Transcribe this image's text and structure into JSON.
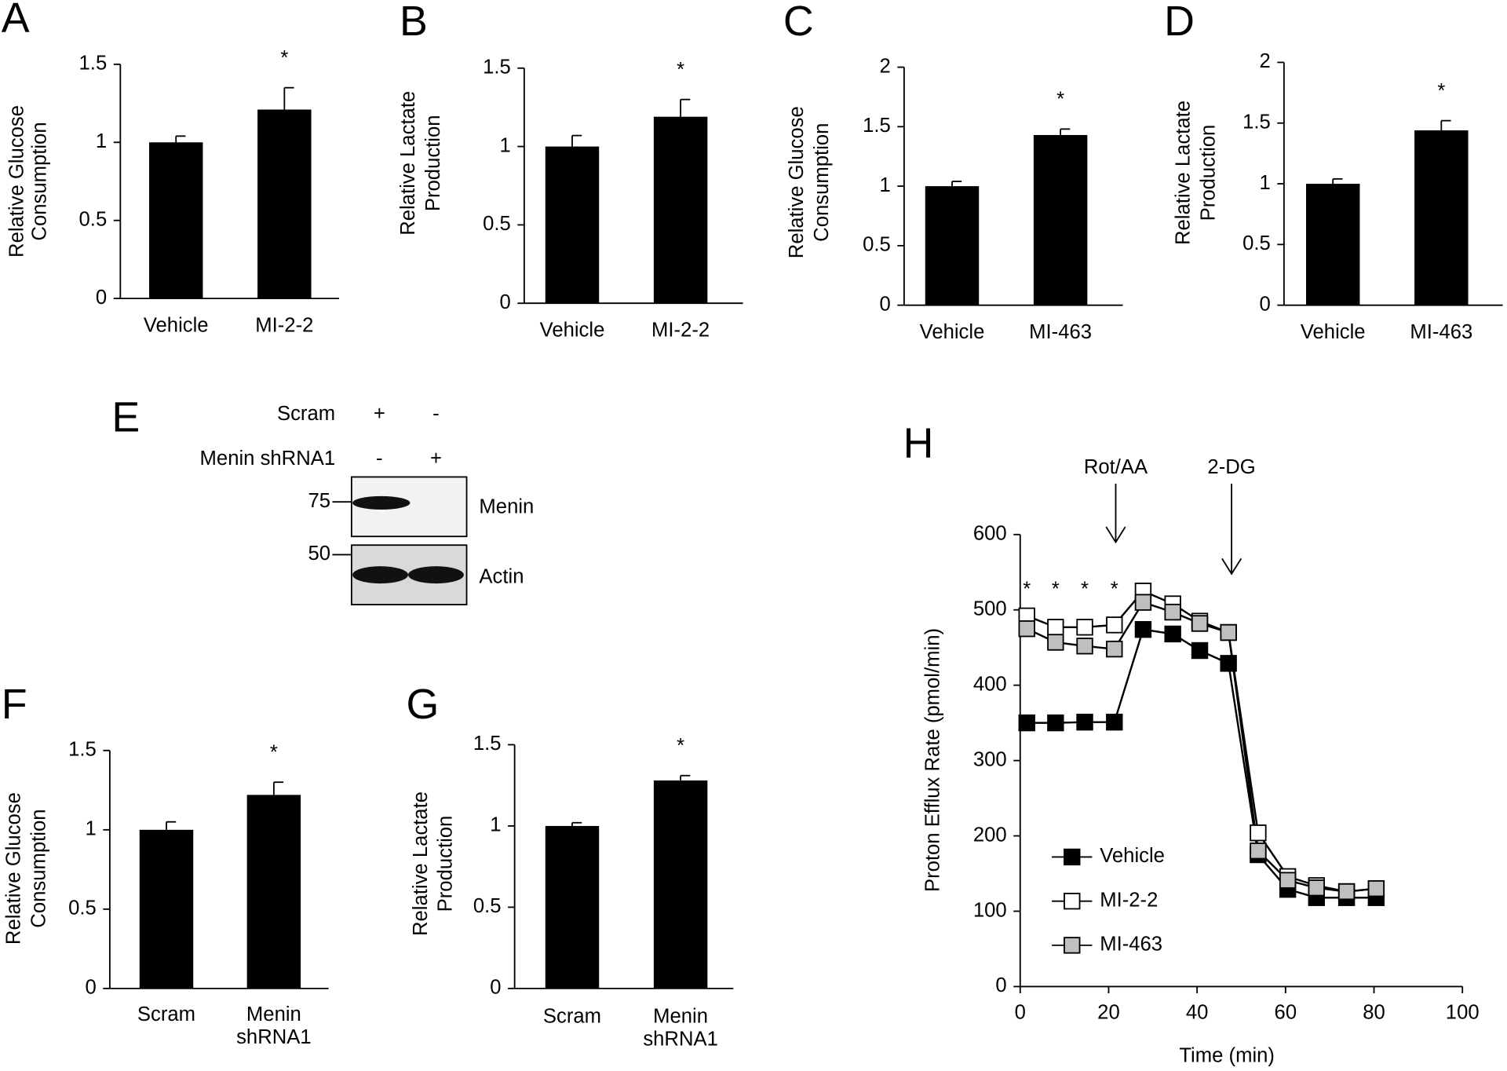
{
  "chart_data": [
    {
      "type": "bar",
      "panel": "A",
      "ylabel": [
        "Relative Glucose",
        "Consumption"
      ],
      "categories": [
        "Vehicle",
        "MI-2-2"
      ],
      "values": [
        1.0,
        1.21
      ],
      "errors": [
        0.04,
        0.14
      ],
      "annotation": "*",
      "color": "#000000",
      "ylim": [
        0,
        1.5
      ],
      "yticks": [
        0,
        0.5,
        1,
        1.5
      ]
    },
    {
      "type": "bar",
      "panel": "B",
      "ylabel": [
        "Relative Lactate",
        "Production"
      ],
      "categories": [
        "Vehicle",
        "MI-2-2"
      ],
      "values": [
        1.0,
        1.19
      ],
      "errors": [
        0.07,
        0.11
      ],
      "annotation": "*",
      "color": "#000000",
      "ylim": [
        0,
        1.5
      ],
      "yticks": [
        0,
        0.5,
        1,
        1.5
      ]
    },
    {
      "type": "bar",
      "panel": "C",
      "ylabel": [
        "Relative Glucose",
        "Consumption"
      ],
      "categories": [
        "Vehicle",
        "MI-463"
      ],
      "values": [
        1.0,
        1.43
      ],
      "errors": [
        0.04,
        0.05
      ],
      "annotation": "*",
      "color": "#000000",
      "ylim": [
        0,
        2
      ],
      "yticks": [
        0,
        0.5,
        1,
        1.5,
        2
      ]
    },
    {
      "type": "bar",
      "panel": "D",
      "ylabel": [
        "Relative Lactate",
        "Production"
      ],
      "categories": [
        "Vehicle",
        "MI-463"
      ],
      "values": [
        1.0,
        1.44
      ],
      "errors": [
        0.04,
        0.08
      ],
      "annotation": "*",
      "color": "#000000",
      "ylim": [
        0,
        2
      ],
      "yticks": [
        0,
        0.5,
        1,
        1.5,
        2
      ]
    },
    {
      "type": "bar",
      "panel": "F",
      "ylabel": [
        "Relative Glucose",
        "Consumption"
      ],
      "categories": [
        [
          "Scram"
        ],
        [
          "Menin",
          "shRNA1"
        ]
      ],
      "values": [
        1.0,
        1.22
      ],
      "errors": [
        0.05,
        0.08
      ],
      "annotation": "*",
      "color": "#000000",
      "ylim": [
        0,
        1.5
      ],
      "yticks": [
        0,
        0.5,
        1,
        1.5
      ]
    },
    {
      "type": "bar",
      "panel": "G",
      "ylabel": [
        "Relative Lactate",
        "Production"
      ],
      "categories": [
        [
          "Scram"
        ],
        [
          "Menin",
          "shRNA1"
        ]
      ],
      "values": [
        1.0,
        1.28
      ],
      "errors": [
        0.02,
        0.03
      ],
      "annotation": "*",
      "color": "#000000",
      "ylim": [
        0,
        1.5
      ],
      "yticks": [
        0,
        0.5,
        1,
        1.5
      ]
    },
    {
      "type": "line",
      "panel": "H",
      "xlabel": "Time (min)",
      "ylabel": "Proton Efflux Rate (pmol/min)",
      "x": [
        1.5,
        8,
        14.6,
        21.3,
        27.8,
        34.5,
        40.6,
        47.1,
        53.8,
        60.5,
        67,
        73.8,
        80.5
      ],
      "series": [
        {
          "name": "Vehicle",
          "color": "#000000",
          "values": [
            350,
            350,
            351,
            351,
            474,
            468,
            446,
            429,
            175,
            129,
            118,
            118,
            118
          ]
        },
        {
          "name": "MI-2-2",
          "color": "#ffffff",
          "values": [
            492,
            477,
            477,
            480,
            525,
            508,
            485,
            470,
            204,
            146,
            134,
            126,
            130
          ]
        },
        {
          "name": "MI-463",
          "color": "#bfbfbf",
          "values": [
            475,
            457,
            452,
            448,
            510,
            497,
            482,
            470,
            180,
            141,
            131,
            126,
            130
          ]
        }
      ],
      "xlim": [
        0,
        100
      ],
      "xticks": [
        0,
        20,
        40,
        60,
        80,
        100
      ],
      "ylim": [
        0,
        600
      ],
      "yticks": [
        0,
        100,
        200,
        300,
        400,
        500,
        600
      ],
      "significance": {
        "text": "*",
        "x": [
          1.5,
          8,
          14.6,
          21.3
        ]
      },
      "arrows": [
        {
          "text": "Rot/AA",
          "x": 21.6
        },
        {
          "text": "2-DG",
          "x": 47.8
        }
      ],
      "legend": "lower left"
    }
  ],
  "blot": {
    "panel": "E",
    "conditions": [
      {
        "name": "Scram",
        "signs": [
          "+",
          "-"
        ]
      },
      {
        "name": "Menin shRNA1",
        "signs": [
          "-",
          "+"
        ]
      }
    ],
    "markers": [
      75,
      50
    ],
    "bands": [
      "Menin",
      "Actin"
    ]
  }
}
